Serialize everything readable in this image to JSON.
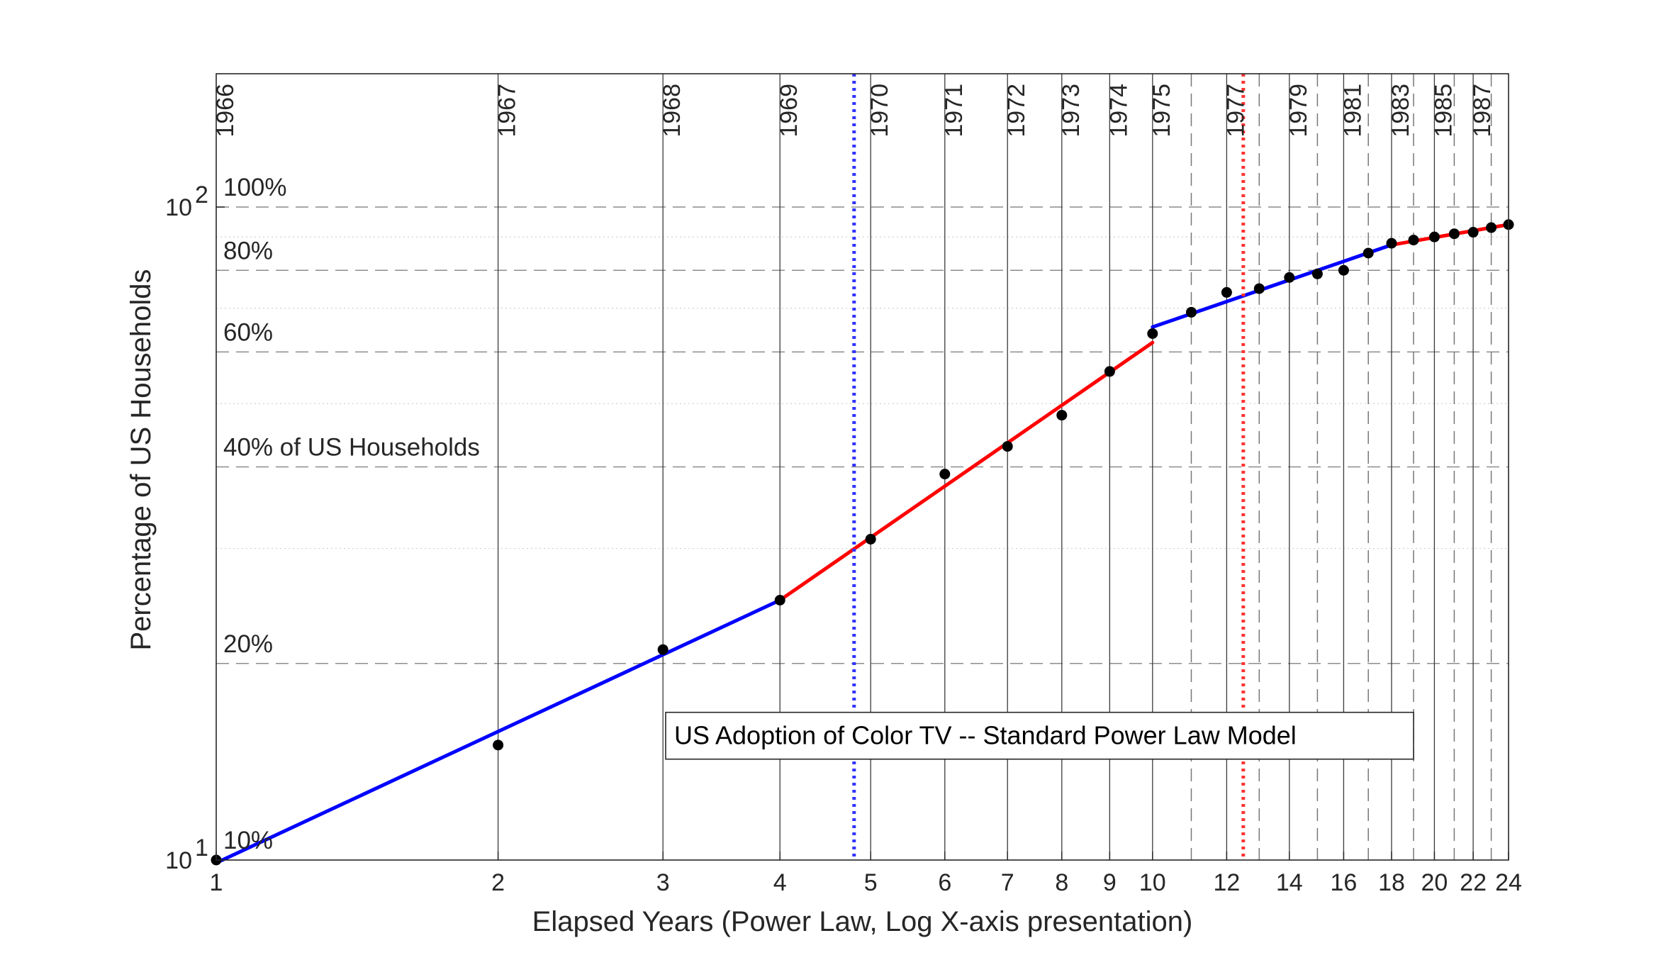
{
  "chart_data": {
    "type": "line",
    "title": "US Adoption of Color TV -- Standard Power Law Model",
    "xlabel": "Elapsed Years (Power Law, Log X-axis presentation)",
    "ylabel": "Percentage of US Households",
    "x_scale": "log",
    "y_scale": "log",
    "xlim": [
      1,
      24
    ],
    "ylim": [
      10,
      160
    ],
    "grid": true,
    "x_ticks": [
      {
        "value": 1,
        "label": "1"
      },
      {
        "value": 2,
        "label": "2"
      },
      {
        "value": 3,
        "label": "3"
      },
      {
        "value": 4,
        "label": "4"
      },
      {
        "value": 5,
        "label": "5"
      },
      {
        "value": 6,
        "label": "6"
      },
      {
        "value": 7,
        "label": "7"
      },
      {
        "value": 8,
        "label": "8"
      },
      {
        "value": 9,
        "label": "9"
      },
      {
        "value": 10,
        "label": "10"
      },
      {
        "value": 12,
        "label": "12"
      },
      {
        "value": 14,
        "label": "14"
      },
      {
        "value": 16,
        "label": "16"
      },
      {
        "value": 18,
        "label": "18"
      },
      {
        "value": 20,
        "label": "20"
      },
      {
        "value": 22,
        "label": "22"
      },
      {
        "value": 24,
        "label": "24"
      }
    ],
    "y_ticks": [
      {
        "value": 10,
        "base": "10",
        "exp": "1"
      },
      {
        "value": 100,
        "base": "10",
        "exp": "2"
      }
    ],
    "year_lines": [
      {
        "x": 1,
        "label": "1966",
        "dashed": false
      },
      {
        "x": 2,
        "label": "1967",
        "dashed": false
      },
      {
        "x": 3,
        "label": "1968",
        "dashed": false
      },
      {
        "x": 4,
        "label": "1969",
        "dashed": false
      },
      {
        "x": 5,
        "label": "1970",
        "dashed": false
      },
      {
        "x": 6,
        "label": "1971",
        "dashed": false
      },
      {
        "x": 7,
        "label": "1972",
        "dashed": false
      },
      {
        "x": 8,
        "label": "1973",
        "dashed": false
      },
      {
        "x": 9,
        "label": "1974",
        "dashed": false
      },
      {
        "x": 10,
        "label": "1975",
        "dashed": false
      },
      {
        "x": 11,
        "label": "",
        "dashed": true
      },
      {
        "x": 12,
        "label": "1977",
        "dashed": false
      },
      {
        "x": 13,
        "label": "",
        "dashed": true
      },
      {
        "x": 14,
        "label": "1979",
        "dashed": false
      },
      {
        "x": 15,
        "label": "",
        "dashed": true
      },
      {
        "x": 16,
        "label": "1981",
        "dashed": false
      },
      {
        "x": 17,
        "label": "",
        "dashed": true
      },
      {
        "x": 18,
        "label": "1983",
        "dashed": false
      },
      {
        "x": 19,
        "label": "",
        "dashed": true
      },
      {
        "x": 20,
        "label": "1985",
        "dashed": false
      },
      {
        "x": 21,
        "label": "",
        "dashed": true
      },
      {
        "x": 22,
        "label": "1987",
        "dashed": false
      },
      {
        "x": 23,
        "label": "",
        "dashed": true
      },
      {
        "x": 24,
        "label": "",
        "dashed": false
      }
    ],
    "year_label_offset": 0.5,
    "percent_lines": [
      {
        "y": 100,
        "label": "100%"
      },
      {
        "y": 80,
        "label": "80%"
      },
      {
        "y": 60,
        "label": "60%"
      },
      {
        "y": 40,
        "label": "40% of US Households"
      },
      {
        "y": 20,
        "label": "20%"
      },
      {
        "y": 10,
        "label": "10%"
      }
    ],
    "minor_y_gridlines": [
      30,
      50,
      70,
      90
    ],
    "points": [
      {
        "x": 1,
        "y": 10.0
      },
      {
        "x": 2,
        "y": 15.0
      },
      {
        "x": 3,
        "y": 21.0
      },
      {
        "x": 4,
        "y": 25.0
      },
      {
        "x": 5,
        "y": 31.0
      },
      {
        "x": 6,
        "y": 39.0
      },
      {
        "x": 7,
        "y": 43.0
      },
      {
        "x": 8,
        "y": 48.0
      },
      {
        "x": 9,
        "y": 56.0
      },
      {
        "x": 10,
        "y": 64.0
      },
      {
        "x": 11,
        "y": 69.0
      },
      {
        "x": 12,
        "y": 74.0
      },
      {
        "x": 13,
        "y": 75.0
      },
      {
        "x": 14,
        "y": 78.0
      },
      {
        "x": 15,
        "y": 79.0
      },
      {
        "x": 16,
        "y": 80.0
      },
      {
        "x": 17,
        "y": 85.0
      },
      {
        "x": 18,
        "y": 88.0
      },
      {
        "x": 19,
        "y": 89.0
      },
      {
        "x": 20,
        "y": 90.0
      },
      {
        "x": 21,
        "y": 91.0
      },
      {
        "x": 22,
        "y": 91.5
      },
      {
        "x": 23,
        "y": 93.0
      },
      {
        "x": 24,
        "y": 94.0
      }
    ],
    "fit_segments": [
      {
        "color": "#0000ff",
        "x": [
          1,
          4
        ],
        "y": [
          9.9,
          25.0
        ]
      },
      {
        "color": "#ff0000",
        "x": [
          4,
          10
        ],
        "y": [
          25.0,
          62.0
        ]
      },
      {
        "color": "#0000ff",
        "x": [
          10,
          18
        ],
        "y": [
          65.5,
          87.5
        ]
      },
      {
        "color": "#ff0000",
        "x": [
          18,
          24
        ],
        "y": [
          87.5,
          94.0
        ]
      }
    ],
    "vertical_markers": [
      {
        "x": 4.8,
        "color": "#3333ff",
        "style": "dotted"
      },
      {
        "x": 12.5,
        "color": "#ff3333",
        "style": "dotted"
      }
    ],
    "annotation_box": {
      "x": 3.02,
      "y": 15.5,
      "anchor": "left"
    }
  }
}
